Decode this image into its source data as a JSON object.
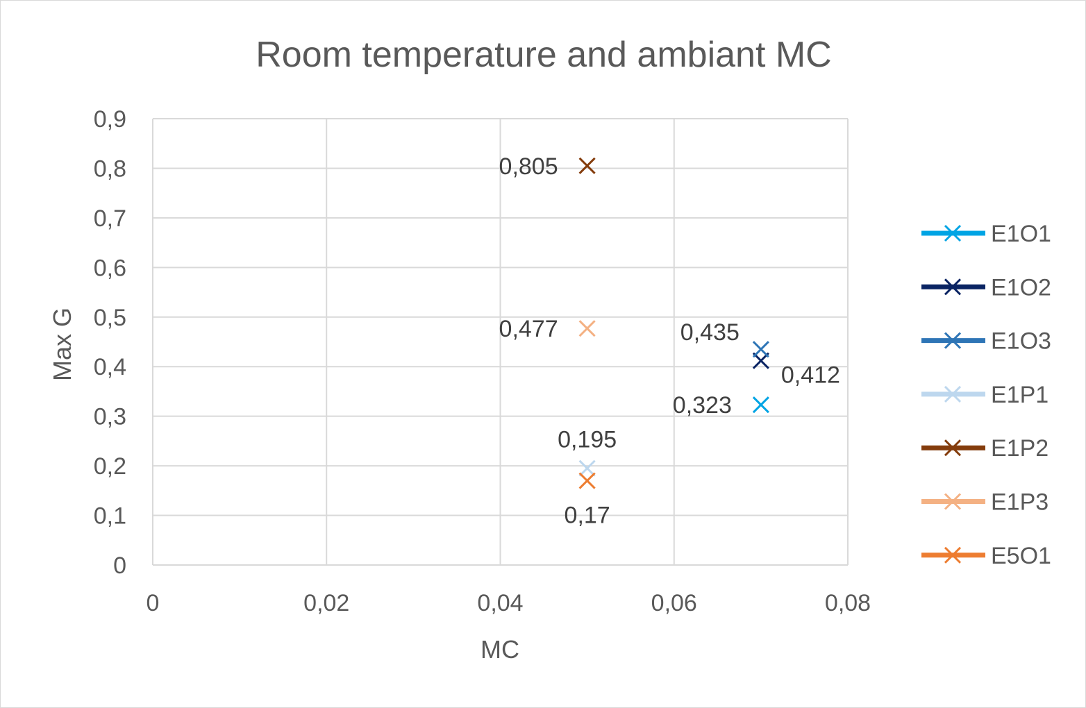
{
  "chart_data": {
    "type": "scatter",
    "title": "Room temperature and ambiant MC",
    "xlabel": "MC",
    "ylabel": "Max G",
    "xlim": [
      0,
      0.08
    ],
    "ylim": [
      0,
      0.9
    ],
    "x_ticks": [
      0,
      0.02,
      0.04,
      0.06,
      0.08
    ],
    "x_tick_labels": [
      "0",
      "0,02",
      "0,04",
      "0,06",
      "0,08"
    ],
    "y_ticks": [
      0,
      0.1,
      0.2,
      0.3,
      0.4,
      0.5,
      0.6,
      0.7,
      0.8,
      0.9
    ],
    "y_tick_labels": [
      "0",
      "0,1",
      "0,2",
      "0,3",
      "0,4",
      "0,5",
      "0,6",
      "0,7",
      "0,8",
      "0,9"
    ],
    "grid": true,
    "legend_position": "right",
    "series": [
      {
        "name": "E1O1",
        "color": "#00a4e4",
        "points": [
          {
            "x": 0.07,
            "y": 0.323,
            "label": "0,323",
            "label_pos": "left"
          }
        ]
      },
      {
        "name": "E1O2",
        "color": "#0a2463",
        "points": [
          {
            "x": 0.07,
            "y": 0.412,
            "label": "0,412",
            "label_pos": "below-right"
          }
        ]
      },
      {
        "name": "E1O3",
        "color": "#2e75b6",
        "points": [
          {
            "x": 0.07,
            "y": 0.435,
            "label": "0,435",
            "label_pos": "above-left"
          }
        ]
      },
      {
        "name": "E1P1",
        "color": "#bdd7ee",
        "points": [
          {
            "x": 0.05,
            "y": 0.195,
            "label": "0,195",
            "label_pos": "above"
          }
        ]
      },
      {
        "name": "E1P2",
        "color": "#843c0c",
        "points": [
          {
            "x": 0.05,
            "y": 0.805,
            "label": "0,805",
            "label_pos": "left"
          }
        ]
      },
      {
        "name": "E1P3",
        "color": "#f4b183",
        "points": [
          {
            "x": 0.05,
            "y": 0.477,
            "label": "0,477",
            "label_pos": "left"
          }
        ]
      },
      {
        "name": "E5O1",
        "color": "#ed7d31",
        "points": [
          {
            "x": 0.05,
            "y": 0.17,
            "label": "0,17",
            "label_pos": "below"
          }
        ]
      }
    ],
    "legend_labels": [
      "E1O1",
      "E1O2",
      "E1O3",
      "E1P1",
      "E1P2",
      "E1P3",
      "E5O1"
    ]
  }
}
